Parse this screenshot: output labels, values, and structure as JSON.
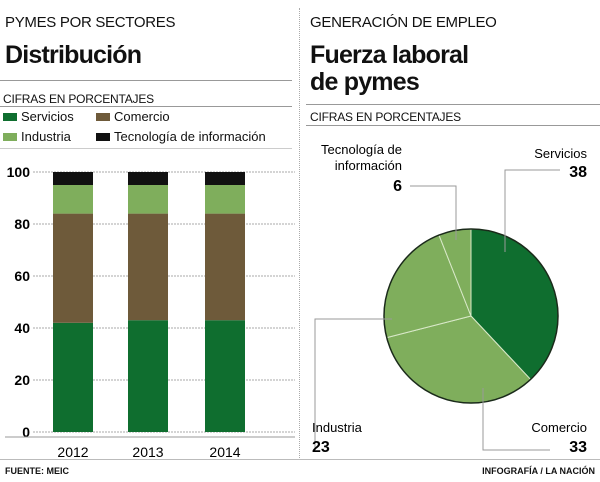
{
  "left": {
    "kicker": "PYMES POR SECTORES",
    "title": "Distribución",
    "subtitle": "CIFRAS EN PORCENTAJES"
  },
  "right": {
    "kicker": "GENERACIÓN DE EMPLEO",
    "title_line1": "Fuerza laboral",
    "title_line2": "de pymes",
    "subtitle": "CIFRAS EN PORCENTAJES"
  },
  "legend": [
    {
      "label": "Servicios",
      "color": "#0f6e2f"
    },
    {
      "label": "Comercio",
      "color": "#6e5a3a"
    },
    {
      "label": "Industria",
      "color": "#7fae5c"
    },
    {
      "label": "Tecnología de información",
      "color": "#111111"
    }
  ],
  "chart_data": [
    {
      "type": "bar",
      "stacked": true,
      "categories": [
        "2012",
        "2013",
        "2014"
      ],
      "ylim": [
        0,
        100
      ],
      "yticks": [
        "0",
        "20",
        "40",
        "60",
        "80",
        "100"
      ],
      "grid": true,
      "series": [
        {
          "name": "Servicios",
          "values": [
            42,
            43,
            43
          ]
        },
        {
          "name": "Comercio",
          "values": [
            42,
            41,
            41
          ]
        },
        {
          "name": "Industria",
          "values": [
            11,
            11,
            11
          ]
        },
        {
          "name": "Tecnología de información",
          "values": [
            5,
            5,
            5
          ]
        }
      ]
    },
    {
      "type": "pie",
      "slices": [
        {
          "name": "Servicios",
          "value": 38,
          "color": "#0f6e2f"
        },
        {
          "name": "Comercio",
          "value": 33,
          "color": "#7fae5c"
        },
        {
          "name": "Industria",
          "value": 23,
          "color": "#7fae5c"
        },
        {
          "name": "Tecnología de información",
          "value": 6,
          "color": "#7fae5c"
        }
      ],
      "labels": {
        "ti_line1": "Tecnología de",
        "ti_line2": "información"
      }
    }
  ],
  "footer": {
    "source": "FUENTE: MEIC",
    "credit": "INFOGRAFÍA / LA NACIÓN"
  }
}
